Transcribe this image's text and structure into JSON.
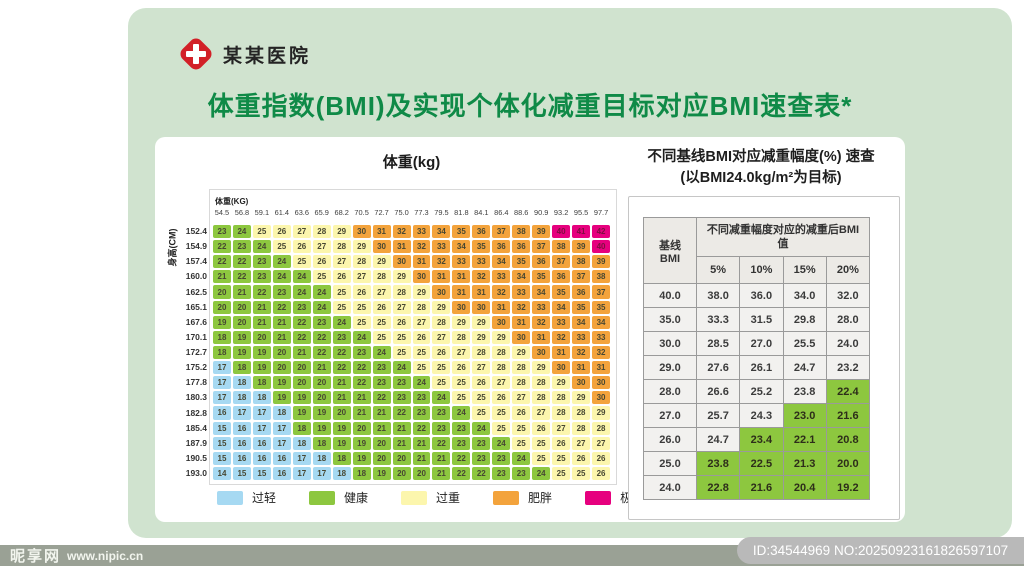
{
  "header": {
    "hospital_name": "某某医院",
    "logo_icon": "red-cross-diamond",
    "title": "体重指数(BMI)及实现个体化减重目标对应BMI速查表*",
    "title_color": "#0f8a47",
    "logo_color": "#d22027"
  },
  "bmi_grid": {
    "weight_axis_title": "体重(kg)",
    "weight_unit_label": "体重(KG)",
    "height_unit_label": "身高(CM)",
    "weights": [
      "54.5",
      "56.8",
      "59.1",
      "61.4",
      "63.6",
      "65.9",
      "68.2",
      "70.5",
      "72.7",
      "75.0",
      "77.3",
      "79.5",
      "81.8",
      "84.1",
      "86.4",
      "88.6",
      "90.9",
      "93.2",
      "95.5",
      "97.7"
    ],
    "heights": [
      "152.4",
      "154.9",
      "157.4",
      "160.0",
      "162.5",
      "165.1",
      "167.6",
      "170.1",
      "172.7",
      "175.2",
      "177.8",
      "180.3",
      "182.8",
      "185.4",
      "187.9",
      "190.5",
      "193.0"
    ],
    "category_colors": {
      "underweight": "#a6d9f2",
      "healthy": "#8dc73f",
      "overweight": "#fcf6ad",
      "obese": "#f3a33c",
      "extreme": "#e6007e"
    },
    "rows": [
      {
        "height": "152.4",
        "underweight_cols": 0,
        "values": [
          23,
          24,
          25,
          26,
          27,
          28,
          29,
          30,
          31,
          32,
          33,
          34,
          35,
          36,
          37,
          38,
          39,
          40,
          41,
          42
        ]
      },
      {
        "height": "154.9",
        "underweight_cols": 0,
        "values": [
          22,
          23,
          24,
          25,
          26,
          27,
          28,
          29,
          30,
          31,
          32,
          33,
          34,
          35,
          36,
          36,
          37,
          38,
          39,
          40
        ]
      },
      {
        "height": "157.4",
        "underweight_cols": 0,
        "values": [
          22,
          22,
          23,
          24,
          25,
          26,
          27,
          28,
          29,
          30,
          31,
          32,
          33,
          33,
          34,
          35,
          36,
          37,
          38,
          39
        ]
      },
      {
        "height": "160.0",
        "underweight_cols": 0,
        "values": [
          21,
          22,
          23,
          24,
          24,
          25,
          26,
          27,
          28,
          29,
          30,
          31,
          31,
          32,
          33,
          34,
          35,
          36,
          37,
          38
        ]
      },
      {
        "height": "162.5",
        "underweight_cols": 0,
        "values": [
          20,
          21,
          22,
          23,
          24,
          24,
          25,
          26,
          27,
          28,
          29,
          30,
          31,
          31,
          32,
          33,
          34,
          35,
          36,
          37
        ]
      },
      {
        "height": "165.1",
        "underweight_cols": 0,
        "values": [
          20,
          20,
          21,
          22,
          23,
          24,
          25,
          25,
          26,
          27,
          28,
          29,
          30,
          30,
          31,
          32,
          33,
          34,
          35,
          35
        ]
      },
      {
        "height": "167.6",
        "underweight_cols": 0,
        "values": [
          19,
          20,
          21,
          21,
          22,
          23,
          24,
          25,
          25,
          26,
          27,
          28,
          29,
          29,
          30,
          31,
          32,
          33,
          34,
          34
        ]
      },
      {
        "height": "170.1",
        "underweight_cols": 0,
        "values": [
          18,
          19,
          20,
          21,
          22,
          22,
          23,
          24,
          25,
          25,
          26,
          27,
          28,
          29,
          29,
          30,
          31,
          32,
          33,
          33
        ]
      },
      {
        "height": "172.7",
        "underweight_cols": 0,
        "values": [
          18,
          19,
          19,
          20,
          21,
          22,
          22,
          23,
          24,
          25,
          25,
          26,
          27,
          28,
          28,
          29,
          30,
          31,
          32,
          32
        ]
      },
      {
        "height": "175.2",
        "underweight_cols": 1,
        "values": [
          17,
          18,
          19,
          20,
          20,
          21,
          22,
          22,
          23,
          24,
          25,
          25,
          26,
          27,
          28,
          28,
          29,
          30,
          31,
          31
        ]
      },
      {
        "height": "177.8",
        "underweight_cols": 2,
        "values": [
          17,
          18,
          18,
          19,
          20,
          20,
          21,
          22,
          23,
          23,
          24,
          25,
          25,
          26,
          27,
          28,
          28,
          29,
          30,
          30
        ]
      },
      {
        "height": "180.3",
        "underweight_cols": 3,
        "values": [
          17,
          18,
          18,
          19,
          19,
          20,
          21,
          21,
          22,
          23,
          23,
          24,
          25,
          25,
          26,
          27,
          28,
          28,
          29,
          30
        ]
      },
      {
        "height": "182.8",
        "underweight_cols": 4,
        "values": [
          16,
          17,
          17,
          18,
          19,
          19,
          20,
          21,
          21,
          22,
          23,
          23,
          24,
          25,
          25,
          26,
          27,
          28,
          28,
          29
        ]
      },
      {
        "height": "185.4",
        "underweight_cols": 4,
        "values": [
          15,
          16,
          17,
          17,
          18,
          19,
          19,
          20,
          21,
          21,
          22,
          23,
          23,
          24,
          25,
          25,
          26,
          27,
          28,
          28
        ]
      },
      {
        "height": "187.9",
        "underweight_cols": 5,
        "values": [
          15,
          16,
          16,
          17,
          18,
          18,
          19,
          19,
          20,
          21,
          21,
          22,
          23,
          23,
          24,
          25,
          25,
          26,
          27,
          27
        ]
      },
      {
        "height": "190.5",
        "underweight_cols": 6,
        "values": [
          15,
          16,
          16,
          16,
          17,
          18,
          18,
          19,
          20,
          20,
          21,
          21,
          22,
          23,
          23,
          24,
          25,
          25,
          26,
          26
        ]
      },
      {
        "height": "193.0",
        "underweight_cols": 7,
        "values": [
          14,
          15,
          15,
          16,
          17,
          17,
          18,
          18,
          19,
          20,
          20,
          21,
          22,
          22,
          23,
          23,
          24,
          25,
          25,
          26
        ]
      }
    ],
    "legend": [
      {
        "label": "过轻",
        "color": "#a6d9f2"
      },
      {
        "label": "健康",
        "color": "#8dc73f"
      },
      {
        "label": "过重",
        "color": "#fcf6ad"
      },
      {
        "label": "肥胖",
        "color": "#f3a33c"
      },
      {
        "label": "极度肥胖",
        "color": "#e6007e"
      }
    ]
  },
  "side_table": {
    "title_line1": "不同基线BMI对应减重幅度(%) 速查",
    "title_line2": "(以BMI24.0kg/m²为目标)",
    "header": {
      "baseline_label_l1": "基线",
      "baseline_label_l2": "BMI",
      "group_label": "不同减重幅度对应的减重后BMI值",
      "percent_cols": [
        "5%",
        "10%",
        "15%",
        "20%"
      ]
    },
    "goal_color": "#8dc73f",
    "rows": [
      {
        "baseline": "40.0",
        "values": [
          "38.0",
          "36.0",
          "34.0",
          "32.0"
        ],
        "green": [
          false,
          false,
          false,
          false
        ]
      },
      {
        "baseline": "35.0",
        "values": [
          "33.3",
          "31.5",
          "29.8",
          "28.0"
        ],
        "green": [
          false,
          false,
          false,
          false
        ]
      },
      {
        "baseline": "30.0",
        "values": [
          "28.5",
          "27.0",
          "25.5",
          "24.0"
        ],
        "green": [
          false,
          false,
          false,
          false
        ]
      },
      {
        "baseline": "29.0",
        "values": [
          "27.6",
          "26.1",
          "24.7",
          "23.2"
        ],
        "green": [
          false,
          false,
          false,
          false
        ]
      },
      {
        "baseline": "28.0",
        "values": [
          "26.6",
          "25.2",
          "23.8",
          "22.4"
        ],
        "green": [
          false,
          false,
          false,
          true
        ]
      },
      {
        "baseline": "27.0",
        "values": [
          "25.7",
          "24.3",
          "23.0",
          "21.6"
        ],
        "green": [
          false,
          false,
          true,
          true
        ]
      },
      {
        "baseline": "26.0",
        "values": [
          "24.7",
          "23.4",
          "22.1",
          "20.8"
        ],
        "green": [
          false,
          true,
          true,
          true
        ]
      },
      {
        "baseline": "25.0",
        "values": [
          "23.8",
          "22.5",
          "21.3",
          "20.0"
        ],
        "green": [
          true,
          true,
          true,
          true
        ]
      },
      {
        "baseline": "24.0",
        "values": [
          "22.8",
          "21.6",
          "20.4",
          "19.2"
        ],
        "green": [
          true,
          true,
          true,
          true
        ]
      }
    ]
  },
  "footer": {
    "watermark_site": "昵享网",
    "watermark_url": "www.nipic.cn",
    "id_text": "ID:34544969 NO:20250923161826597107"
  }
}
